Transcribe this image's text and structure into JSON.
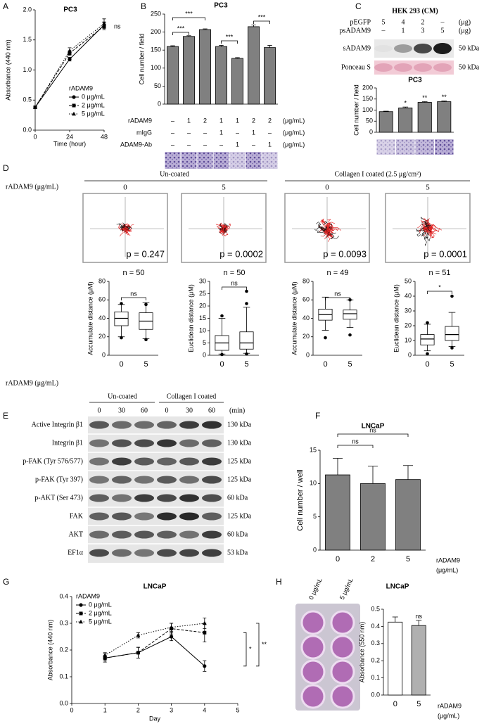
{
  "panel_labels": [
    "A",
    "B",
    "C",
    "D",
    "E",
    "F",
    "G",
    "H"
  ],
  "chart_data": [
    {
      "type": "line",
      "title": "PC3",
      "x_label": "Time (hour)",
      "y_label": "Absorbance (440 nm)",
      "x": [
        0,
        24,
        48
      ],
      "xlim": [
        0,
        48
      ],
      "xticks": [
        0,
        24,
        48
      ],
      "ylim": [
        0,
        2
      ],
      "yticks": [
        {
          "value": 0,
          "label": "0.0"
        },
        0.5,
        {
          "value": 1,
          "label": "1.0"
        },
        1.5,
        {
          "value": 2,
          "label": "2.0"
        }
      ],
      "legend_title": "rADAM9",
      "series": [
        {
          "name": "0 μg/mL",
          "color": "#000000",
          "marker": "circle",
          "dash": "solid",
          "values": [
            0.38,
            1.18,
            1.75
          ],
          "errors": [
            0.02,
            0.03,
            0.05
          ]
        },
        {
          "name": "2 μg/mL",
          "color": "#000000",
          "marker": "square",
          "dash": "dashed",
          "values": [
            0.38,
            1.28,
            1.73
          ],
          "errors": [
            0.02,
            0.04,
            0.06
          ]
        },
        {
          "name": "5 μg/mL",
          "color": "#000000",
          "marker": "triangle",
          "dash": "dotted",
          "values": [
            0.38,
            1.32,
            1.77
          ],
          "errors": [
            0.02,
            0.05,
            0.08
          ]
        }
      ],
      "annotations": [
        "ns"
      ]
    },
    {
      "type": "bar",
      "title": "PC3",
      "y_label": "Cell number / field",
      "color": "#808080",
      "values": [
        160,
        188,
        207,
        160,
        127,
        215,
        157
      ],
      "errors": [
        2,
        2,
        2,
        3,
        2,
        5,
        6
      ],
      "ylim": [
        0,
        250
      ],
      "yticks": [
        0,
        50,
        100,
        150,
        200,
        250
      ],
      "annotations": [
        "***",
        "***",
        "***",
        "***"
      ]
    },
    {
      "type": "bar",
      "title": "PC3",
      "y_label": "Cell number / field",
      "color": "#808080",
      "values": [
        93,
        110,
        135,
        138
      ],
      "errors": [
        2,
        4,
        3,
        3
      ],
      "ylim": [
        0,
        200
      ],
      "yticks": [
        0,
        50,
        100,
        150,
        200
      ],
      "annotations": [
        "*",
        "**",
        "**"
      ]
    },
    {
      "type": "box",
      "n_label": "n = 50",
      "y_label": "Accumulate distance (μM)",
      "categories": [
        "0",
        "5"
      ],
      "boxes": [
        {
          "whisker_low": 20,
          "q1": 32,
          "median": 40,
          "q3": 47,
          "whisker_high": 55,
          "outliers": [
            56,
            19
          ]
        },
        {
          "whisker_low": 18,
          "q1": 28,
          "median": 37,
          "q3": 46,
          "whisker_high": 57,
          "outliers": [
            55,
            17
          ]
        }
      ],
      "ylim": [
        0,
        80
      ],
      "yticks": [
        0,
        20,
        40,
        60,
        80
      ],
      "annotations": [
        "ns"
      ]
    },
    {
      "type": "box",
      "n_label": "n = 50",
      "y_label": "Euclidean distance (μM)",
      "categories": [
        "0",
        "5"
      ],
      "boxes": [
        {
          "whisker_low": 0.5,
          "q1": 2,
          "median": 5,
          "q3": 8,
          "whisker_high": 15,
          "outliers": [
            16,
            0.3
          ]
        },
        {
          "whisker_low": 0.8,
          "q1": 2.5,
          "median": 5,
          "q3": 9.5,
          "whisker_high": 19.5,
          "outliers": [
            26,
            21,
            0.5
          ]
        }
      ],
      "ylim": [
        0,
        30
      ],
      "yticks": [
        0,
        5,
        10,
        15,
        20,
        25,
        30
      ],
      "annotations": [
        "ns"
      ]
    },
    {
      "type": "box",
      "n_label": "n = 49",
      "y_label": "Accumulate distance (μM)",
      "categories": [
        "0",
        "5"
      ],
      "boxes": [
        {
          "whisker_low": 27,
          "q1": 38,
          "median": 44,
          "q3": 50,
          "whisker_high": 63,
          "outliers": [
            19
          ]
        },
        {
          "whisker_low": 30,
          "q1": 39,
          "median": 45,
          "q3": 49,
          "whisker_high": 60,
          "outliers": [
            22,
            60
          ]
        }
      ],
      "ylim": [
        0,
        80
      ],
      "yticks": [
        0,
        20,
        40,
        60,
        80
      ],
      "annotations": [
        "ns"
      ]
    },
    {
      "type": "box",
      "n_label": "n = 51",
      "y_label": "Euclidean distance (μM)",
      "categories": [
        "0",
        "5"
      ],
      "boxes": [
        {
          "whisker_low": 3,
          "q1": 7,
          "median": 11,
          "q3": 14,
          "whisker_high": 21,
          "outliers": [
            22,
            1
          ]
        },
        {
          "whisker_low": 6,
          "q1": 10,
          "median": 14,
          "q3": 19.5,
          "whisker_high": 29,
          "outliers": [
            40,
            5
          ]
        }
      ],
      "ylim": [
        0,
        50
      ],
      "yticks": [
        0,
        10,
        20,
        30,
        40,
        50
      ],
      "annotations": [
        "*"
      ]
    },
    {
      "type": "bar",
      "title": "LNCaP",
      "y_label": "Cell number / well",
      "color": "#808080",
      "categories": [
        "0",
        "2",
        "5"
      ],
      "x_label": "rADAM9",
      "x_unit": "(μg/mL)",
      "values": [
        11.3,
        10.0,
        10.6
      ],
      "errors": [
        2.5,
        2.6,
        2.1
      ],
      "ylim": [
        0,
        15
      ],
      "yticks": [
        0,
        5,
        10,
        15
      ],
      "annotations": [
        "ns",
        "ns"
      ]
    },
    {
      "type": "line",
      "title": "LNCaP",
      "x_label": "Day",
      "y_label": "Absorbance (440 nm)",
      "x": [
        1,
        2,
        3,
        4
      ],
      "xlim": [
        0,
        5
      ],
      "xticks": [
        0,
        1,
        2,
        3,
        4,
        5
      ],
      "ylim": [
        0,
        0.4
      ],
      "yticks": [
        {
          "value": 0,
          "label": "0.0"
        },
        0.1,
        0.2,
        0.3,
        0.4
      ],
      "legend_title": "rADAM9",
      "series": [
        {
          "name": "0 μg/mL",
          "color": "#000000",
          "marker": "circle",
          "dash": "solid",
          "values": [
            0.17,
            0.19,
            0.25,
            0.14
          ],
          "errors": [
            0.015,
            0.02,
            0.015,
            0.02
          ]
        },
        {
          "name": "2 μg/mL",
          "color": "#000000",
          "marker": "square",
          "dash": "dashed",
          "values": [
            0.17,
            0.19,
            0.28,
            0.265
          ],
          "errors": [
            0.01,
            0.02,
            0.02,
            0.035
          ]
        },
        {
          "name": "5 μg/mL",
          "color": "#000000",
          "marker": "triangle",
          "dash": "dotted",
          "values": [
            0.18,
            0.255,
            0.285,
            0.3
          ],
          "errors": [
            0.01,
            0.01,
            0.015,
            0.02
          ]
        }
      ],
      "annotations": [
        "*",
        "**"
      ]
    },
    {
      "type": "bar",
      "title": "LNCaP",
      "y_label": "Absorbance (550 nm)",
      "colors": [
        "#ffffff",
        "#b0b0b0"
      ],
      "categories": [
        "0",
        "5"
      ],
      "x_label": "rADAM9",
      "x_unit": "(μg/mL)",
      "values": [
        0.425,
        0.405
      ],
      "errors": [
        0.03,
        0.03
      ],
      "ylim": [
        0,
        0.5
      ],
      "yticks": [
        {
          "value": 0,
          "label": "0.0"
        },
        0.1,
        0.2,
        0.3,
        0.4,
        0.5
      ],
      "annotations": [
        "ns"
      ]
    }
  ],
  "panel_b": {
    "rows": [
      {
        "label": "rADAM9",
        "cells": [
          "–",
          "1",
          "2",
          "1",
          "1",
          "2",
          "2"
        ],
        "unit": "(μg/mL)"
      },
      {
        "label": "mIgG",
        "cells": [
          "–",
          "–",
          "–",
          "1",
          "–",
          "1",
          "–"
        ],
        "unit": "(μg/mL)"
      },
      {
        "label": "ADAM9-Ab",
        "cells": [
          "–",
          "–",
          "–",
          "–",
          "1",
          "–",
          "1"
        ],
        "unit": "(μg/mL)"
      }
    ]
  },
  "panel_c": {
    "title": "HEK 293 (CM)",
    "rows": [
      {
        "label": "pEGFP",
        "cells": [
          "5",
          "4",
          "2",
          "–"
        ],
        "unit": "(μg)"
      },
      {
        "label": "psADAM9",
        "cells": [
          "–",
          "1",
          "3",
          "5"
        ],
        "unit": "(μg)"
      }
    ],
    "bands": [
      {
        "label": "sADAM9",
        "size": "50 kDa"
      },
      {
        "label": "Ponceau S",
        "size": "50 kDa"
      }
    ]
  },
  "panel_d": {
    "axis_label": "rADAM9 (μg/mL)",
    "groups": [
      "Un-coated",
      "Collagen I coated (2.5 μg/cm²)"
    ],
    "conditions": [
      "0",
      "5",
      "0",
      "5"
    ],
    "p_values": [
      "p = 0.247",
      "p = 0.0002",
      "p = 0.0093",
      "p = 0.0001"
    ],
    "bottom_label": "rADAM9 (μg/mL)"
  },
  "panel_e": {
    "groups": [
      "Un-coated",
      "Collagen I coated"
    ],
    "times": [
      "0",
      "30",
      "60",
      "0",
      "30",
      "60"
    ],
    "unit": "(min)",
    "rows": [
      {
        "label": "Active Integrin β1",
        "size": "130 kDa"
      },
      {
        "label": "Integrin β1",
        "size": "130 kDa"
      },
      {
        "label": "p-FAK (Tyr 576/577)",
        "size": "125 kDa"
      },
      {
        "label": "p-FAK (Tyr 397)",
        "size": "125 kDa"
      },
      {
        "label": "p-AKT (Ser 473)",
        "size": "60 kDa"
      },
      {
        "label": "FAK",
        "size": "125 kDa"
      },
      {
        "label": "AKT",
        "size": "60 kDa"
      },
      {
        "label": "EF1α",
        "size": "53 kDa"
      }
    ]
  },
  "panel_h": {
    "plate_labels": [
      "0 μg/mL",
      "5 μg/mL"
    ]
  }
}
